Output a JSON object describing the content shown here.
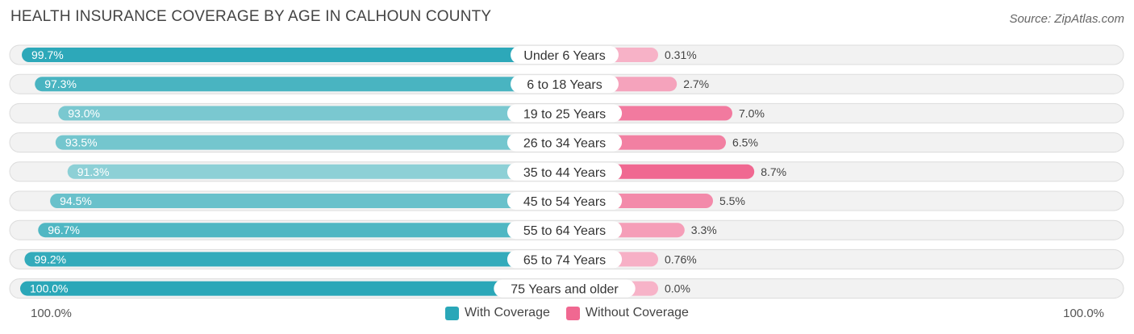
{
  "header": {
    "title": "HEALTH INSURANCE COVERAGE BY AGE IN CALHOUN COUNTY",
    "source": "Source: ZipAtlas.com"
  },
  "colors": {
    "with_coverage_strong": "#2aa7b8",
    "with_coverage_light": "#8dd0d6",
    "without_coverage_strong": "#f06891",
    "without_coverage_light": "#f7b3c8",
    "row_background": "#eeeeee",
    "row_border": "#dddddd"
  },
  "axis": {
    "left_label": "100.0%",
    "right_label": "100.0%"
  },
  "legend": {
    "with_label": "With Coverage",
    "without_label": "Without Coverage"
  },
  "chart_data": {
    "type": "bar",
    "orientation": "horizontal-diverging",
    "title": "HEALTH INSURANCE COVERAGE BY AGE IN CALHOUN COUNTY",
    "categories": [
      "Under 6 Years",
      "6 to 18 Years",
      "19 to 25 Years",
      "26 to 34 Years",
      "35 to 44 Years",
      "45 to 54 Years",
      "55 to 64 Years",
      "65 to 74 Years",
      "75 Years and older"
    ],
    "series": [
      {
        "name": "With Coverage",
        "values": [
          99.7,
          97.3,
          93.0,
          93.5,
          91.3,
          94.5,
          96.7,
          99.2,
          100.0
        ],
        "labels": [
          "99.7%",
          "97.3%",
          "93.0%",
          "93.5%",
          "91.3%",
          "94.5%",
          "96.7%",
          "99.2%",
          "100.0%"
        ]
      },
      {
        "name": "Without Coverage",
        "values": [
          0.31,
          2.7,
          7.0,
          6.5,
          8.7,
          5.5,
          3.3,
          0.76,
          0.0
        ],
        "labels": [
          "0.31%",
          "2.7%",
          "7.0%",
          "6.5%",
          "8.7%",
          "5.5%",
          "3.3%",
          "0.76%",
          "0.0%"
        ]
      }
    ],
    "xlim_left": [
      0,
      100
    ],
    "xlim_right": [
      0,
      100
    ],
    "legend_position": "bottom-center"
  }
}
